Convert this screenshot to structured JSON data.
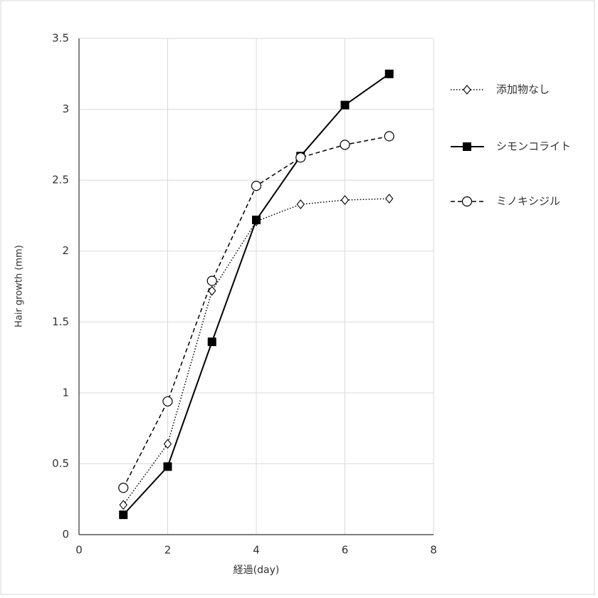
{
  "chart_data": {
    "type": "line",
    "x_label": "経過(day)",
    "y_label": "Hair growth (mm)",
    "x": [
      1,
      2,
      3,
      4,
      5,
      6,
      7
    ],
    "series": [
      {
        "name": "添加物なし",
        "color": "#000000",
        "dash": "dotted",
        "marker": "diamond",
        "values": [
          0.21,
          0.64,
          1.72,
          2.21,
          2.33,
          2.36,
          2.37
        ]
      },
      {
        "name": "シモンコライト",
        "color": "#000000",
        "dash": "solid",
        "marker": "square",
        "values": [
          0.14,
          0.48,
          1.36,
          2.22,
          2.67,
          3.03,
          3.25
        ]
      },
      {
        "name": "ミノキシジル",
        "color": "#000000",
        "dash": "dashed",
        "marker": "circle",
        "values": [
          0.33,
          0.94,
          1.79,
          2.46,
          2.66,
          2.75,
          2.81
        ]
      }
    ],
    "xlim": [
      0,
      8
    ],
    "xticks": [
      0,
      2,
      4,
      6,
      8
    ],
    "ylim": [
      0,
      3.5
    ],
    "yticks": [
      0,
      0.5,
      1,
      1.5,
      2,
      2.5,
      3,
      3.5
    ],
    "grid": true,
    "legend": "right"
  }
}
